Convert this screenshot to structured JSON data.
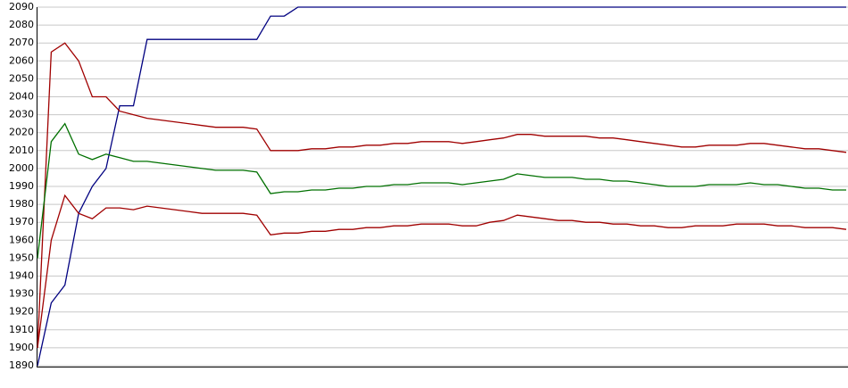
{
  "chart_data": {
    "type": "line",
    "ylim": [
      1890,
      2090
    ],
    "yticks": [
      1890,
      1900,
      1910,
      1920,
      1930,
      1940,
      1950,
      1960,
      1970,
      1980,
      1990,
      2000,
      2010,
      2020,
      2030,
      2040,
      2050,
      2060,
      2070,
      2080,
      2090
    ],
    "grid": true,
    "series": [
      {
        "color": "#000080",
        "values": [
          1890,
          1925,
          1935,
          1975,
          1990,
          2000,
          2035,
          2035,
          2072,
          2072,
          2072,
          2072,
          2072,
          2072,
          2072,
          2072,
          2072,
          2085,
          2085,
          2090,
          2090,
          2090,
          2090,
          2090,
          2090,
          2090,
          2090,
          2090,
          2090,
          2090,
          2090,
          2090,
          2090,
          2090,
          2090,
          2090,
          2090,
          2090,
          2090,
          2090,
          2090,
          2090,
          2090,
          2090,
          2090,
          2090,
          2090,
          2090,
          2090,
          2090,
          2090,
          2090,
          2090,
          2090,
          2090,
          2090,
          2090,
          2090,
          2090,
          2090
        ]
      },
      {
        "color": "#a00000",
        "values": [
          1900,
          2065,
          2070,
          2060,
          2040,
          2040,
          2032,
          2030,
          2028,
          2027,
          2026,
          2025,
          2024,
          2023,
          2023,
          2023,
          2022,
          2010,
          2010,
          2010,
          2011,
          2011,
          2012,
          2012,
          2013,
          2013,
          2014,
          2014,
          2015,
          2015,
          2015,
          2014,
          2015,
          2016,
          2017,
          2019,
          2019,
          2018,
          2018,
          2018,
          2018,
          2017,
          2017,
          2016,
          2015,
          2014,
          2013,
          2012,
          2012,
          2013,
          2013,
          2013,
          2014,
          2014,
          2013,
          2012,
          2011,
          2011,
          2010,
          2009
        ]
      },
      {
        "color": "#007000",
        "values": [
          1950,
          2015,
          2025,
          2008,
          2005,
          2008,
          2006,
          2004,
          2004,
          2003,
          2002,
          2001,
          2000,
          1999,
          1999,
          1999,
          1998,
          1986,
          1987,
          1987,
          1988,
          1988,
          1989,
          1989,
          1990,
          1990,
          1991,
          1991,
          1992,
          1992,
          1992,
          1991,
          1992,
          1993,
          1994,
          1997,
          1996,
          1995,
          1995,
          1995,
          1994,
          1994,
          1993,
          1993,
          1992,
          1991,
          1990,
          1990,
          1990,
          1991,
          1991,
          1991,
          1992,
          1991,
          1991,
          1990,
          1989,
          1989,
          1988,
          1988
        ]
      },
      {
        "color": "#a00000",
        "values": [
          1900,
          1960,
          1985,
          1975,
          1972,
          1978,
          1978,
          1977,
          1979,
          1978,
          1977,
          1976,
          1975,
          1975,
          1975,
          1975,
          1974,
          1963,
          1964,
          1964,
          1965,
          1965,
          1966,
          1966,
          1967,
          1967,
          1968,
          1968,
          1969,
          1969,
          1969,
          1968,
          1968,
          1970,
          1971,
          1974,
          1973,
          1972,
          1971,
          1971,
          1970,
          1970,
          1969,
          1969,
          1968,
          1968,
          1967,
          1967,
          1968,
          1968,
          1968,
          1969,
          1969,
          1969,
          1968,
          1968,
          1967,
          1967,
          1967,
          1966
        ]
      }
    ]
  }
}
